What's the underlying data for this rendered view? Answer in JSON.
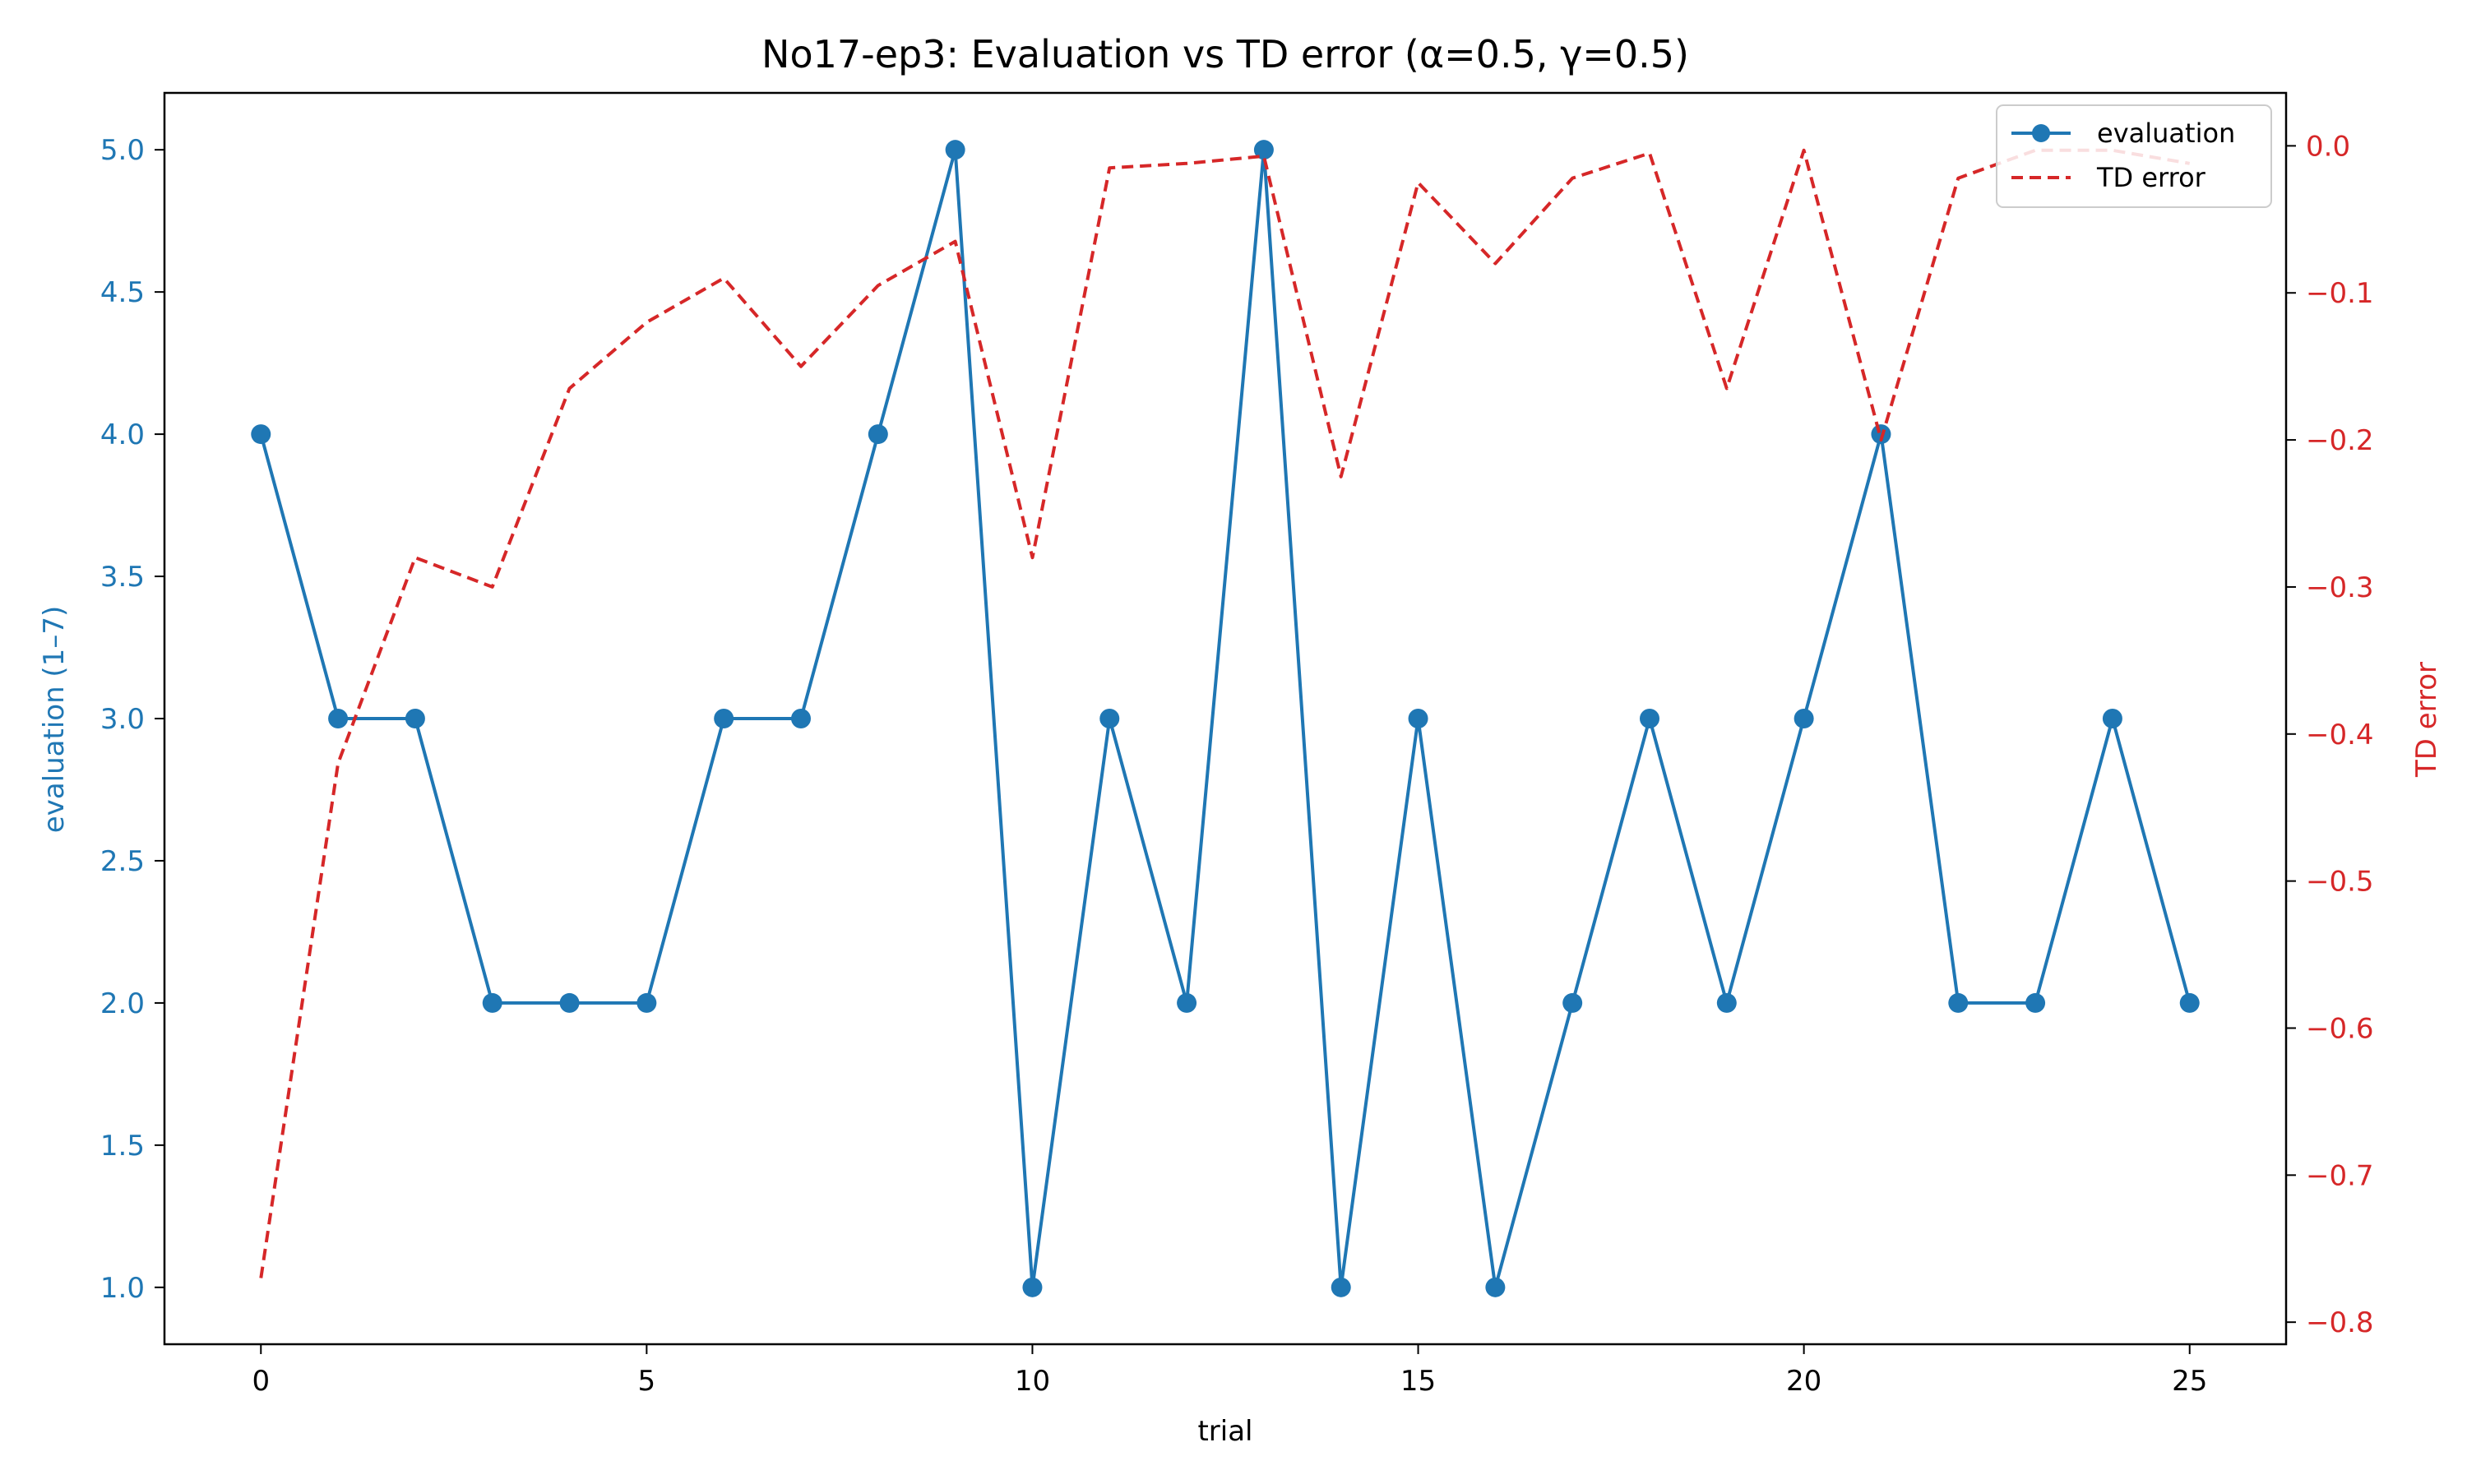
{
  "chart_data": {
    "type": "line",
    "title": "No17-ep3: Evaluation vs TD error (α=0.5, γ=0.5)",
    "xlabel": "trial",
    "ylabel_left": "evaluation (1–7)",
    "ylabel_right": "TD error",
    "x": [
      0,
      1,
      2,
      3,
      4,
      5,
      6,
      7,
      8,
      9,
      10,
      11,
      12,
      13,
      14,
      15,
      16,
      17,
      18,
      19,
      20,
      21,
      22,
      23,
      24,
      25
    ],
    "xlim": [
      -1.25,
      26.25
    ],
    "xticks": [
      "0",
      "5",
      "10",
      "15",
      "20",
      "25"
    ],
    "ylim_left": [
      0.8,
      5.2
    ],
    "yticks_left": [
      "1.0",
      "1.5",
      "2.0",
      "2.5",
      "3.0",
      "3.5",
      "4.0",
      "4.5",
      "5.0"
    ],
    "ylim_right": [
      -0.815,
      0.036
    ],
    "yticks_right": [
      "0.0",
      "−0.1",
      "−0.2",
      "−0.3",
      "−0.4",
      "−0.5",
      "−0.6",
      "−0.7",
      "−0.8"
    ],
    "grid": false,
    "legend_position": "top-right",
    "series": [
      {
        "name": "evaluation",
        "axis": "left",
        "style": "solid-with-markers",
        "color": "#1f77b4",
        "values": [
          4,
          3,
          3,
          2,
          2,
          2,
          3,
          3,
          4,
          5,
          1,
          3,
          2,
          5,
          1,
          3,
          1,
          2,
          3,
          2,
          3,
          4,
          2,
          2,
          3,
          2
        ]
      },
      {
        "name": "TD error",
        "axis": "right",
        "style": "dashed",
        "color": "#d62728",
        "values": [
          -0.77,
          -0.42,
          -0.28,
          -0.3,
          -0.165,
          -0.12,
          -0.09,
          -0.15,
          -0.095,
          -0.065,
          -0.28,
          -0.015,
          -0.012,
          -0.007,
          -0.225,
          -0.025,
          -0.08,
          -0.022,
          -0.005,
          -0.165,
          -0.003,
          -0.2,
          -0.022,
          -0.003,
          -0.003,
          -0.012
        ]
      }
    ]
  }
}
